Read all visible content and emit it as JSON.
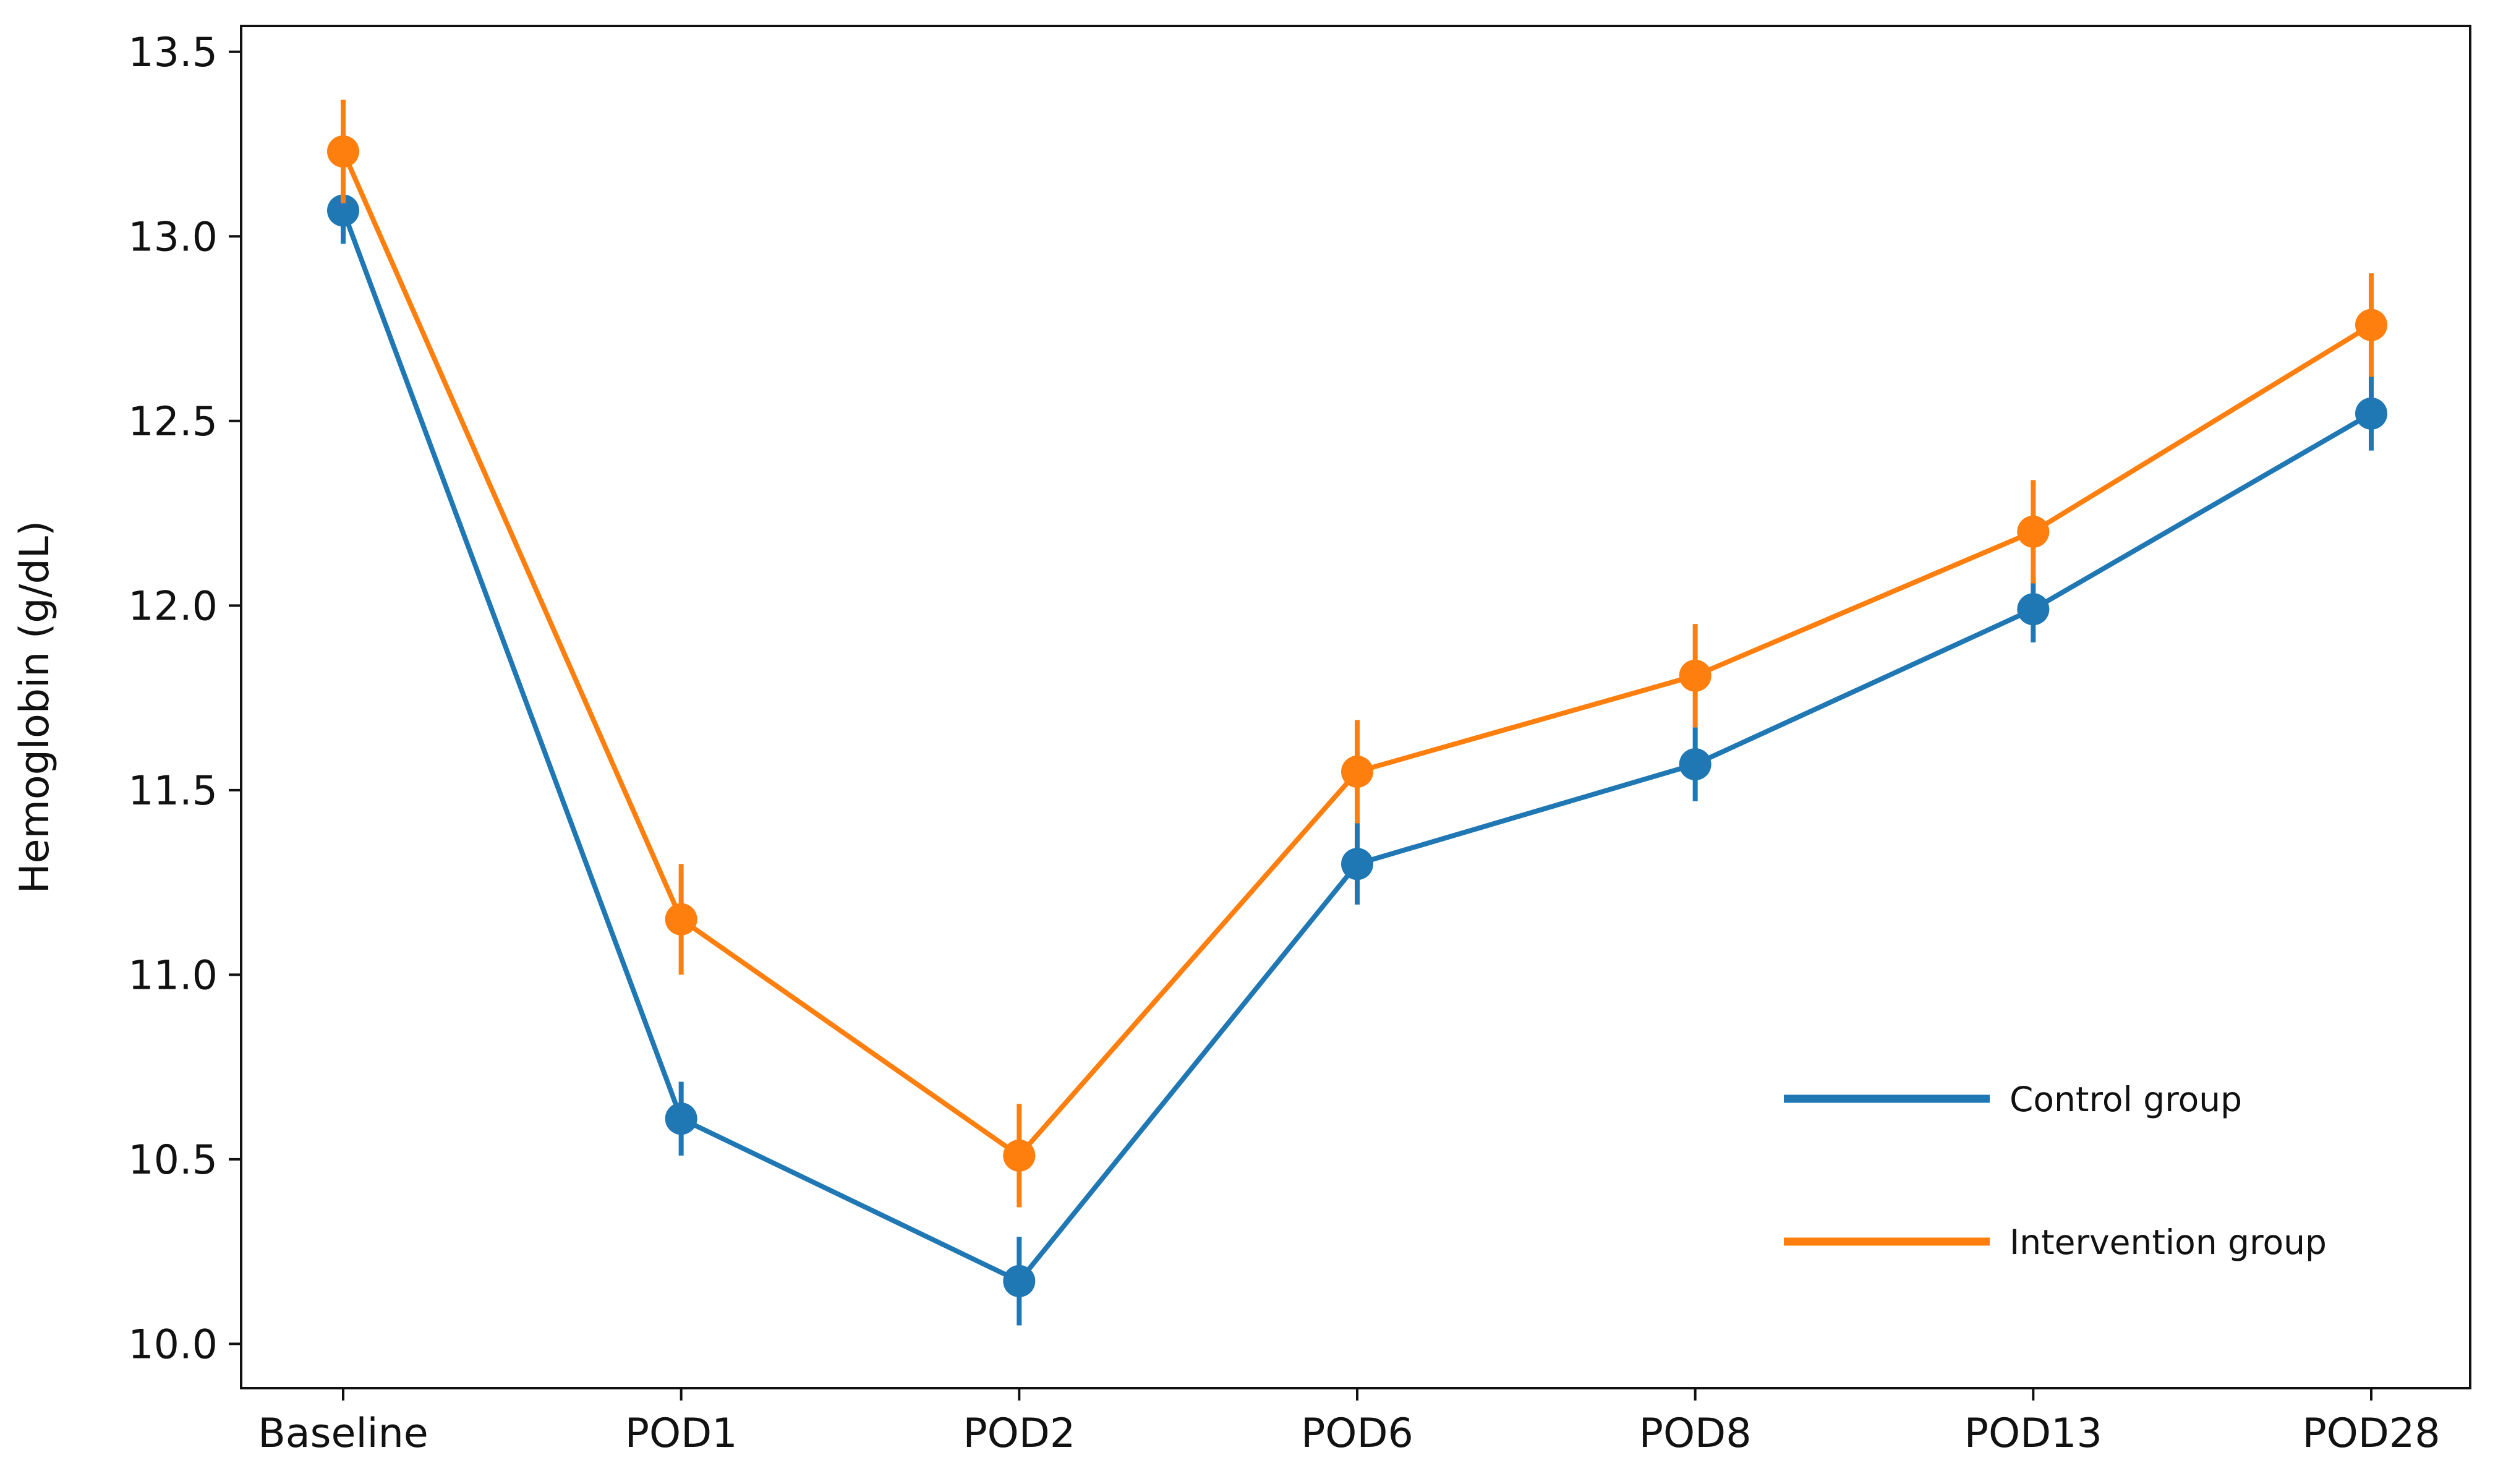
{
  "chart_data": {
    "type": "line",
    "title": "",
    "xlabel": "",
    "ylabel": "Hemoglobin (g/dL)",
    "categories": [
      "Baseline",
      "POD1",
      "POD2",
      "POD6",
      "POD8",
      "POD13",
      "POD28"
    ],
    "ylim": [
      9.88,
      13.57
    ],
    "yticks": [
      "10.0",
      "10.5",
      "11.0",
      "11.5",
      "12.0",
      "12.5",
      "13.0",
      "13.5"
    ],
    "grid": false,
    "legend_position": "lower-right",
    "series": [
      {
        "name": "Control group",
        "color": "#1f77b4",
        "values": [
          13.07,
          10.61,
          10.17,
          11.3,
          11.57,
          11.99,
          12.52
        ],
        "error": [
          0.09,
          0.1,
          0.12,
          0.11,
          0.1,
          0.09,
          0.1
        ]
      },
      {
        "name": "Intervention group",
        "color": "#ff7f0e",
        "values": [
          13.23,
          11.15,
          10.51,
          11.55,
          11.81,
          12.2,
          12.76
        ],
        "error": [
          0.14,
          0.15,
          0.14,
          0.14,
          0.14,
          0.14,
          0.14
        ]
      }
    ]
  }
}
